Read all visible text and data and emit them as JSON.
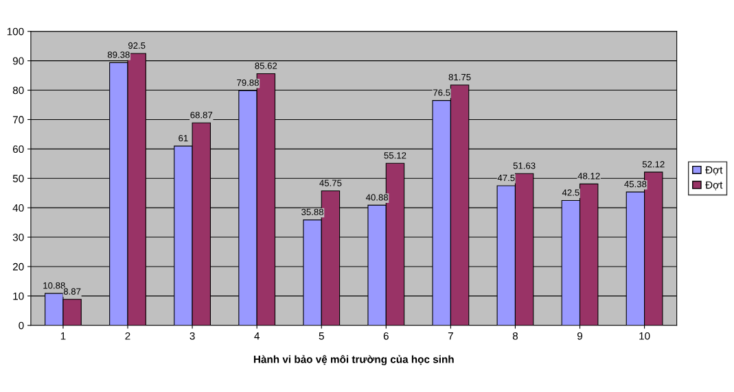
{
  "chart_data": {
    "type": "bar",
    "xlabel": "Hành vi bảo vệ môi trường của học sinh",
    "categories": [
      "1",
      "2",
      "3",
      "4",
      "5",
      "6",
      "7",
      "8",
      "9",
      "10"
    ],
    "series": [
      {
        "name": "Đợt",
        "color": "#9999ff",
        "values": [
          10.88,
          89.38,
          61,
          79.88,
          35.88,
          40.88,
          76.5,
          47.5,
          42.5,
          45.38
        ]
      },
      {
        "name": "Đợt",
        "color": "#993366",
        "values": [
          8.87,
          92.5,
          68.87,
          85.62,
          45.75,
          55.12,
          81.75,
          51.63,
          48.12,
          52.12
        ]
      }
    ],
    "ylim": [
      0,
      100
    ],
    "yticks": [
      0,
      10,
      20,
      30,
      40,
      50,
      60,
      70,
      80,
      90,
      100
    ],
    "grid": "y",
    "legend": "right",
    "data_labels": true
  }
}
